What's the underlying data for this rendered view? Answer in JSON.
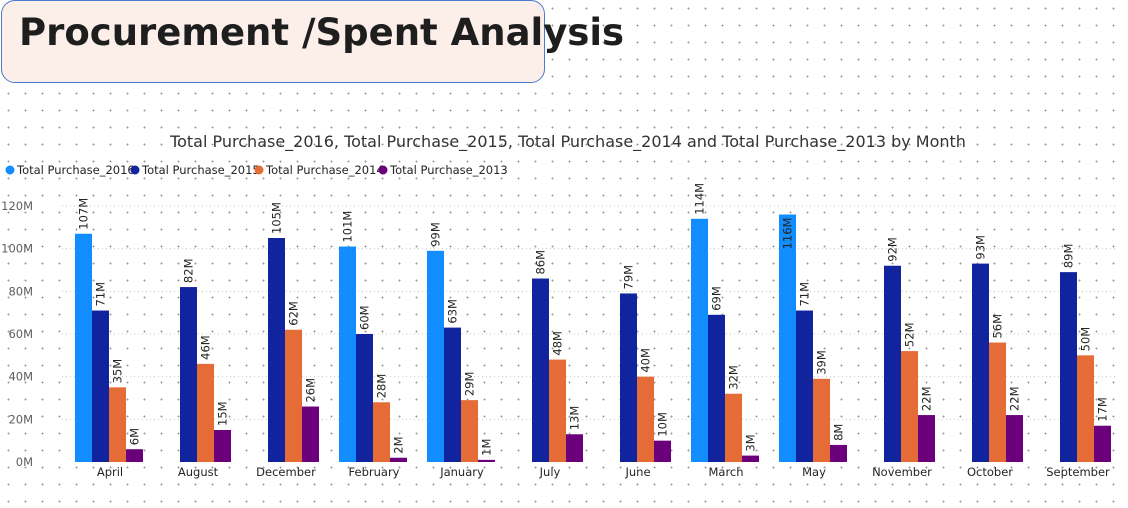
{
  "header": {
    "title": "Procurement /Spent Analysis"
  },
  "colors": {
    "series_2016": "#118dff",
    "series_2015": "#12239e",
    "series_2014": "#e66c37",
    "series_2013": "#6b007b"
  },
  "chart_data": {
    "type": "bar",
    "title": "Total Purchase_2016, Total Purchase_2015, Total Purchase_2014 and Total Purchase_2013 by Month",
    "xlabel": "",
    "ylabel": "",
    "ylim": [
      0,
      120
    ],
    "yticks": [
      "0M",
      "20M",
      "40M",
      "60M",
      "80M",
      "100M",
      "120M"
    ],
    "ytick_values": [
      0,
      20,
      40,
      60,
      80,
      100,
      120
    ],
    "legend_position": "top-left",
    "grid": true,
    "categories": [
      "April",
      "August",
      "December",
      "February",
      "January",
      "July",
      "June",
      "March",
      "May",
      "November",
      "October",
      "September"
    ],
    "series": [
      {
        "name": "Total Purchase_2016",
        "color": "#118dff",
        "values": [
          107,
          null,
          null,
          101,
          99,
          null,
          null,
          114,
          116,
          null,
          null,
          null
        ],
        "labels": [
          "107M",
          "",
          "",
          "101M",
          "99M",
          "",
          "",
          "114M",
          "116M",
          "",
          "",
          ""
        ]
      },
      {
        "name": "Total Purchase_2015",
        "color": "#12239e",
        "values": [
          71,
          82,
          105,
          60,
          63,
          86,
          79,
          69,
          71,
          92,
          93,
          89
        ],
        "labels": [
          "71M",
          "82M",
          "105M",
          "60M",
          "63M",
          "86M",
          "79M",
          "69M",
          "71M",
          "92M",
          "93M",
          "89M"
        ]
      },
      {
        "name": "Total Purchase_2014",
        "color": "#e66c37",
        "values": [
          35,
          46,
          62,
          28,
          29,
          48,
          40,
          32,
          39,
          52,
          56,
          50
        ],
        "labels": [
          "35M",
          "46M",
          "62M",
          "28M",
          "29M",
          "48M",
          "40M",
          "32M",
          "39M",
          "52M",
          "56M",
          "50M"
        ]
      },
      {
        "name": "Total Purchase_2013",
        "color": "#6b007b",
        "values": [
          6,
          15,
          26,
          2,
          1,
          13,
          10,
          3,
          8,
          22,
          22,
          17
        ],
        "labels": [
          "6M",
          "15M",
          "26M",
          "2M",
          "1M",
          "13M",
          "10M",
          "3M",
          "8M",
          "22M",
          "22M",
          "17M"
        ]
      }
    ]
  }
}
